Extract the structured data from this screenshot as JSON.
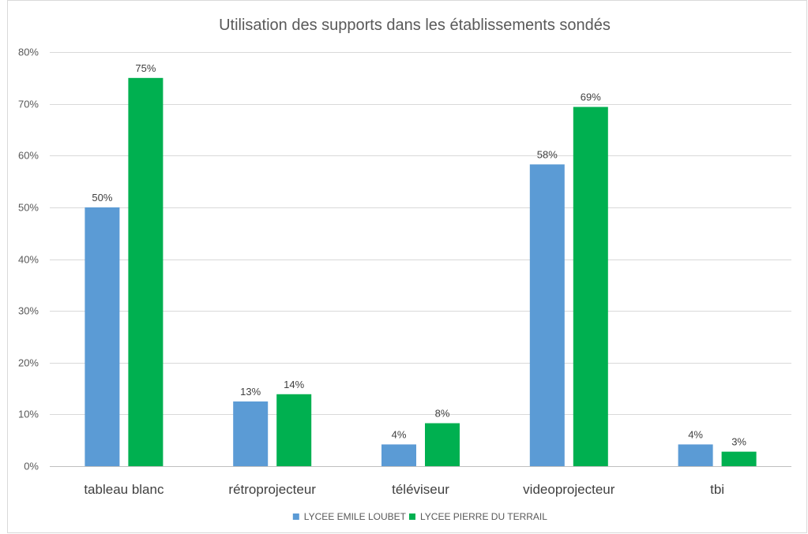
{
  "chart_data": {
    "type": "bar",
    "title": "Utilisation des supports dans les établissements sondés",
    "categories": [
      "tableau blanc",
      "rétroprojecteur",
      "téléviseur",
      "videoprojecteur",
      "tbi"
    ],
    "series": [
      {
        "name": "LYCEE EMILE LOUBET",
        "color": "#5b9bd5",
        "values": [
          50,
          12.5,
          4.2,
          58.3,
          4.2
        ],
        "labels": [
          "50%",
          "13%",
          "4%",
          "58%",
          "4%"
        ]
      },
      {
        "name": "LYCEE PIERRE DU TERRAIL",
        "color": "#00b050",
        "values": [
          75,
          13.9,
          8.3,
          69.4,
          2.8
        ],
        "labels": [
          "75%",
          "14%",
          "8%",
          "69%",
          "3%"
        ]
      }
    ],
    "y_ticks": [
      "0%",
      "10%",
      "20%",
      "30%",
      "40%",
      "50%",
      "60%",
      "70%",
      "80%"
    ],
    "ylim": [
      0,
      80
    ],
    "y_unit": "%",
    "grid": true,
    "legend_position": "bottom"
  }
}
